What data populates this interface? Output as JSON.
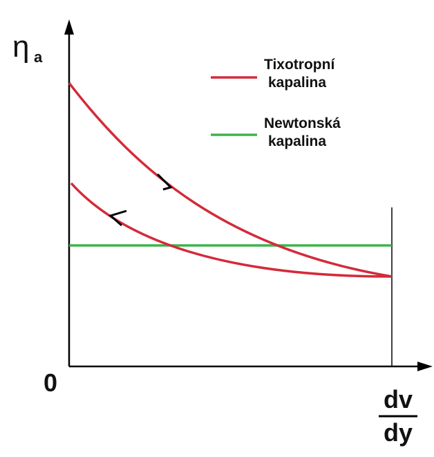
{
  "axes": {
    "y_label": "η",
    "y_label_sub": "a",
    "origin": "0",
    "x_label_numerator": "dv",
    "x_label_denominator": "dy"
  },
  "legend": [
    {
      "lines": [
        "Tixotropní",
        "kapalina"
      ]
    },
    {
      "lines": [
        "Newtonská",
        "kapalina"
      ]
    }
  ]
}
